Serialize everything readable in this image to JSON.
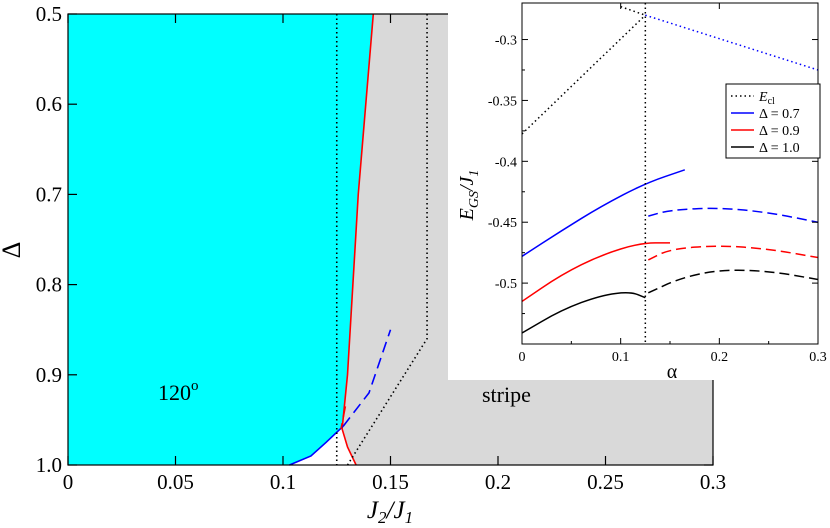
{
  "chart_data": [
    {
      "type": "line",
      "title": "",
      "xlabel": "J_2/J_1",
      "ylabel": "Δ",
      "xlim": [
        0,
        0.3
      ],
      "ylim": [
        0.5,
        1.0
      ],
      "y_inverted": true,
      "x_ticks": [
        "0",
        "0.05",
        "0.1",
        "0.15",
        "0.2",
        "0.25",
        "0.3"
      ],
      "y_ticks": [
        "0.5",
        "0.6",
        "0.7",
        "0.8",
        "0.9",
        "1.0"
      ],
      "regions": [
        {
          "name": "120 degree phase",
          "label": "120",
          "superscript": "o",
          "color": "#00ffff"
        },
        {
          "name": "stripe phase",
          "label": "stripe",
          "color": "#d9d9d9"
        }
      ],
      "series": [
        {
          "name": "red boundary",
          "color": "#ff0000",
          "style": "solid",
          "points": [
            [
              0.142,
              0.5
            ],
            [
              0.135,
              0.7
            ],
            [
              0.13,
              0.9
            ],
            [
              0.1275,
              0.96
            ],
            [
              0.13,
              0.98
            ],
            [
              0.134,
              1.0
            ]
          ]
        },
        {
          "name": "blue boundary",
          "color": "#0000ff",
          "style": "solid",
          "points": [
            [
              0.103,
              1.0
            ],
            [
              0.113,
              0.99
            ],
            [
              0.12,
              0.975
            ],
            [
              0.128,
              0.957
            ]
          ]
        },
        {
          "name": "blue dashed",
          "color": "#0000ff",
          "style": "dashed",
          "points": [
            [
              0.128,
              0.957
            ],
            [
              0.14,
              0.92
            ],
            [
              0.15,
              0.85
            ]
          ]
        },
        {
          "name": "red dashed",
          "color": "#ff0000",
          "style": "dashed",
          "points": [
            [
              0.129,
              0.935
            ],
            [
              0.127,
              0.96
            ]
          ]
        },
        {
          "name": "vertical dotted",
          "color": "#000000",
          "style": "dotted",
          "points": [
            [
              0.125,
              0.5
            ],
            [
              0.125,
              1.0
            ]
          ]
        },
        {
          "name": "diagonal dotted",
          "color": "#000000",
          "style": "dotted",
          "points": [
            [
              0.167,
              0.5
            ],
            [
              0.167,
              0.86
            ],
            [
              0.13,
              1.0
            ]
          ]
        }
      ]
    },
    {
      "type": "line",
      "title": "",
      "xlabel": "α",
      "ylabel_main": "E",
      "ylabel_sub": "GS",
      "ylabel_tail": "/J",
      "ylabel_tail_sub": "1",
      "xlim": [
        0,
        0.3
      ],
      "ylim": [
        -0.55,
        -0.27
      ],
      "x_ticks": [
        "0",
        "0.1",
        "0.2",
        "0.3"
      ],
      "y_ticks": [
        "-0.3",
        "-0.35",
        "-0.4",
        "-0.45",
        "-0.5"
      ],
      "legend_position": "right",
      "legend": [
        {
          "label": "E",
          "sub": "cl",
          "color": "#000000",
          "style": "dotted"
        },
        {
          "label": "Δ = 0.7",
          "color": "#0000ff",
          "style": "solid"
        },
        {
          "label": "Δ = 0.9",
          "color": "#ff0000",
          "style": "solid"
        },
        {
          "label": "Δ = 1.0",
          "color": "#000000",
          "style": "solid"
        }
      ],
      "series": [
        {
          "name": "E_cl rising",
          "color": "#000000",
          "style": "dotted",
          "x": [
            0,
            0.125
          ],
          "y": [
            -0.3775,
            -0.28
          ]
        },
        {
          "name": "E_cl falling",
          "color": "#000000",
          "style": "dotted",
          "x": [
            0.1,
            0.125
          ],
          "y": [
            -0.273,
            -0.28
          ]
        },
        {
          "name": "E_cl falling blue",
          "color": "#0000ff",
          "style": "dotted",
          "x": [
            0.125,
            0.3
          ],
          "y": [
            -0.28,
            -0.325
          ]
        },
        {
          "name": "Δ = 0.7",
          "color": "#0000ff",
          "style": "solid",
          "x": [
            0,
            0.04,
            0.08,
            0.125,
            0.165
          ],
          "y": [
            -0.478,
            -0.457,
            -0.437,
            -0.418,
            -0.407
          ]
        },
        {
          "name": "Δ = 0.7 dashed",
          "color": "#0000ff",
          "style": "dashed",
          "x": [
            0.128,
            0.15,
            0.2,
            0.25,
            0.3
          ],
          "y": [
            -0.445,
            -0.44,
            -0.438,
            -0.442,
            -0.45
          ]
        },
        {
          "name": "Δ = 0.9",
          "color": "#ff0000",
          "style": "solid",
          "x": [
            0,
            0.04,
            0.08,
            0.12,
            0.15
          ],
          "y": [
            -0.515,
            -0.493,
            -0.477,
            -0.467,
            -0.467
          ]
        },
        {
          "name": "Δ = 0.9 dashed",
          "color": "#ff0000",
          "style": "dashed",
          "x": [
            0.128,
            0.15,
            0.2,
            0.25,
            0.3
          ],
          "y": [
            -0.481,
            -0.472,
            -0.469,
            -0.472,
            -0.479
          ]
        },
        {
          "name": "Δ = 1.0",
          "color": "#000000",
          "style": "solid",
          "x": [
            0,
            0.04,
            0.08,
            0.11,
            0.125
          ],
          "y": [
            -0.541,
            -0.522,
            -0.51,
            -0.507,
            -0.512
          ]
        },
        {
          "name": "Δ = 1.0 dashed",
          "color": "#000000",
          "style": "dashed",
          "x": [
            0.128,
            0.16,
            0.2,
            0.25,
            0.3
          ],
          "y": [
            -0.508,
            -0.496,
            -0.489,
            -0.49,
            -0.497
          ]
        },
        {
          "name": "alpha marker",
          "color": "#000000",
          "style": "dotted",
          "x": [
            0.125,
            0.125
          ],
          "y": [
            -0.27,
            -0.55
          ]
        }
      ]
    }
  ]
}
